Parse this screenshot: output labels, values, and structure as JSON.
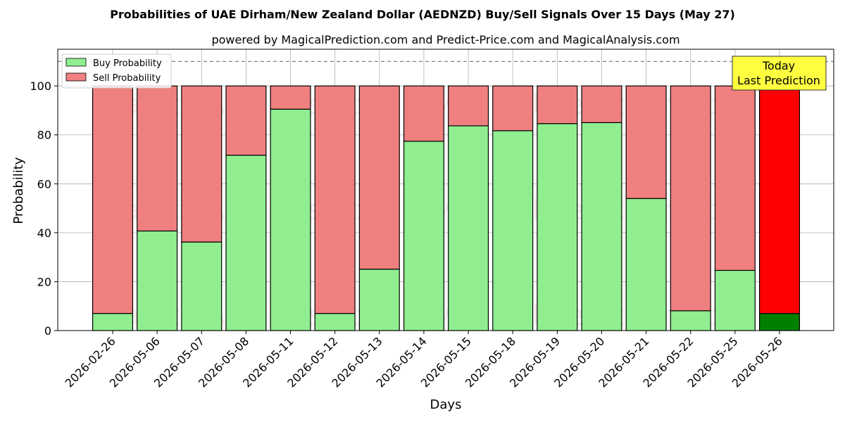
{
  "chart_data": {
    "type": "bar",
    "stacked": true,
    "title": "Probabilities of UAE Dirham/New Zealand Dollar (AEDNZD) Buy/Sell Signals Over 15 Days (May 27)",
    "subtitle": "powered by MagicalPrediction.com and Predict-Price.com and MagicalAnalysis.com",
    "xlabel": "Days",
    "ylabel": "Probability",
    "ylim": [
      0,
      115
    ],
    "yticks": [
      0,
      20,
      40,
      60,
      80,
      100
    ],
    "grid": true,
    "legend_position": "top-left",
    "reference_line": 110,
    "categories": [
      "2026-02-26",
      "2026-05-06",
      "2026-05-07",
      "2026-05-08",
      "2026-05-11",
      "2026-05-12",
      "2026-05-13",
      "2026-05-14",
      "2026-05-15",
      "2026-05-18",
      "2026-05-19",
      "2026-05-20",
      "2026-05-21",
      "2026-05-22",
      "2026-05-25",
      "2026-05-26"
    ],
    "series": [
      {
        "name": "Buy Probability",
        "color": "#90ee90",
        "highlight_color": "#008000",
        "values": [
          7,
          40.7,
          36.2,
          71.7,
          90.5,
          7,
          25.1,
          77.4,
          83.7,
          81.7,
          84.6,
          85,
          54,
          8.1,
          24.6,
          7
        ]
      },
      {
        "name": "Sell Probability",
        "color": "#f08080",
        "highlight_color": "#ff0000",
        "values": [
          93,
          59.3,
          63.8,
          28.3,
          9.5,
          93,
          74.9,
          22.6,
          16.3,
          18.3,
          15.4,
          15,
          46,
          91.9,
          75.4,
          93
        ]
      }
    ],
    "annotation": {
      "lines": [
        "Today",
        "Last Prediction"
      ],
      "background": "#ffff40"
    },
    "watermarks": [
      "MagicalAnalysis.com",
      "MagicalPrediction.com"
    ]
  }
}
